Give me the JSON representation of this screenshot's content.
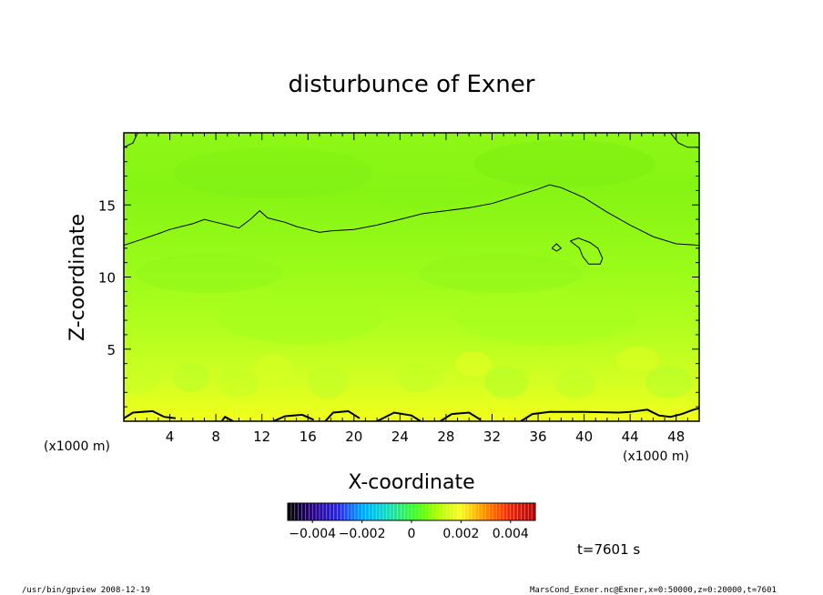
{
  "chart_data": {
    "type": "heatmap",
    "title": "disturbunce of Exner",
    "xlabel": "X-coordinate",
    "ylabel": "Z-coordinate",
    "x_unit": "(x1000 m)",
    "y_unit": "(x1000 m)",
    "xlim": [
      0,
      50
    ],
    "ylim": [
      0,
      20
    ],
    "x_ticks": [
      4,
      8,
      12,
      16,
      20,
      24,
      28,
      32,
      36,
      40,
      44,
      48
    ],
    "y_ticks": [
      5,
      10,
      15
    ],
    "colorbar": {
      "ticks": [
        -0.004,
        -0.002,
        0,
        0.002,
        0.004
      ],
      "tick_labels": [
        "−0.004",
        "−0.002",
        "0",
        "0.002",
        "0.004"
      ],
      "range": [
        -0.005,
        0.005
      ],
      "colormap": [
        "#000000",
        "#2a0088",
        "#2424ff",
        "#00a8ff",
        "#00e0c0",
        "#30ff30",
        "#a8ff00",
        "#ffff00",
        "#ff9000",
        "#ff2000",
        "#c00000"
      ]
    },
    "contour_levels": [
      0
    ],
    "field_description_rows": [
      {
        "z": 19,
        "value": 0.0006
      },
      {
        "z": 15,
        "value": 0.0005
      },
      {
        "z": 10,
        "value": 0.0008
      },
      {
        "z": 5,
        "value": 0.0012
      },
      {
        "z": 1,
        "value": 0.0018
      }
    ],
    "contours": [
      {
        "name": "upper-contour",
        "points": [
          [
            0,
            12.2
          ],
          [
            1.5,
            12.6
          ],
          [
            3,
            13.0
          ],
          [
            4,
            13.3
          ],
          [
            5,
            13.5
          ],
          [
            6,
            13.7
          ],
          [
            7,
            14.0
          ],
          [
            8,
            13.8
          ],
          [
            9,
            13.6
          ],
          [
            10,
            13.4
          ],
          [
            11,
            14.0
          ],
          [
            11.8,
            14.6
          ],
          [
            12.5,
            14.1
          ],
          [
            13,
            14.0
          ],
          [
            14,
            13.8
          ],
          [
            15,
            13.5
          ],
          [
            16,
            13.3
          ],
          [
            17,
            13.1
          ],
          [
            18,
            13.2
          ],
          [
            20,
            13.3
          ],
          [
            22,
            13.6
          ],
          [
            24,
            14.0
          ],
          [
            26,
            14.4
          ],
          [
            28,
            14.6
          ],
          [
            30,
            14.8
          ],
          [
            32,
            15.1
          ],
          [
            34,
            15.6
          ],
          [
            36,
            16.1
          ],
          [
            37,
            16.4
          ],
          [
            38,
            16.2
          ],
          [
            40,
            15.5
          ],
          [
            42,
            14.5
          ],
          [
            44,
            13.6
          ],
          [
            46,
            12.8
          ],
          [
            48,
            12.3
          ],
          [
            50,
            12.2
          ]
        ]
      },
      {
        "name": "island-contour-a",
        "points": [
          [
            37.2,
            12.0
          ],
          [
            37.6,
            12.3
          ],
          [
            38.0,
            12.0
          ],
          [
            37.6,
            11.8
          ],
          [
            37.2,
            12.0
          ]
        ]
      },
      {
        "name": "island-contour-b",
        "points": [
          [
            38.8,
            12.5
          ],
          [
            39.5,
            12.7
          ],
          [
            40.5,
            12.4
          ],
          [
            41.2,
            12.0
          ],
          [
            41.6,
            11.3
          ],
          [
            41.4,
            10.9
          ],
          [
            40.4,
            10.9
          ],
          [
            39.9,
            11.4
          ],
          [
            39.6,
            12.0
          ],
          [
            38.8,
            12.5
          ]
        ]
      },
      {
        "name": "top-left-corner-contour",
        "points": [
          [
            0,
            19.0
          ],
          [
            0.8,
            19.3
          ],
          [
            1.2,
            20
          ]
        ]
      },
      {
        "name": "top-right-corner-contour",
        "points": [
          [
            47.5,
            20
          ],
          [
            48.2,
            19.3
          ],
          [
            49,
            19.0
          ],
          [
            50,
            19.0
          ]
        ]
      },
      {
        "name": "bottom-contour-1",
        "points": [
          [
            0,
            0.2
          ],
          [
            0.8,
            0.6
          ],
          [
            2.5,
            0.7
          ],
          [
            3.5,
            0.3
          ],
          [
            4.5,
            0.2
          ]
        ]
      },
      {
        "name": "bottom-contour-2",
        "points": [
          [
            8.5,
            0
          ],
          [
            8.8,
            0.3
          ],
          [
            9.5,
            0
          ]
        ]
      },
      {
        "name": "bottom-contour-3",
        "points": [
          [
            13,
            0
          ],
          [
            14,
            0.35
          ],
          [
            15.5,
            0.45
          ],
          [
            16.5,
            0.1
          ]
        ]
      },
      {
        "name": "bottom-contour-4",
        "points": [
          [
            17.5,
            0
          ],
          [
            18.2,
            0.6
          ],
          [
            19.5,
            0.7
          ],
          [
            20.5,
            0.2
          ]
        ]
      },
      {
        "name": "bottom-contour-5",
        "points": [
          [
            22,
            0
          ],
          [
            23.5,
            0.6
          ],
          [
            25,
            0.4
          ],
          [
            25.8,
            0
          ]
        ]
      },
      {
        "name": "bottom-contour-6",
        "points": [
          [
            27.5,
            0
          ],
          [
            28.5,
            0.5
          ],
          [
            30,
            0.6
          ],
          [
            31,
            0.1
          ]
        ]
      },
      {
        "name": "bottom-contour-7",
        "points": [
          [
            34.5,
            0
          ],
          [
            35.5,
            0.5
          ],
          [
            37,
            0.65
          ],
          [
            40,
            0.65
          ],
          [
            43,
            0.6
          ],
          [
            44,
            0.65
          ],
          [
            45.5,
            0.8
          ],
          [
            46.5,
            0.4
          ],
          [
            47.5,
            0.3
          ],
          [
            48.5,
            0.5
          ],
          [
            49.5,
            0.8
          ],
          [
            50,
            0.9
          ]
        ]
      }
    ]
  },
  "footer": {
    "left": "/usr/bin/gpview   2008-12-19",
    "right": "MarsCond_Exner.nc@Exner,x=0:50000,z=0:20000,t=7601",
    "time": "t=7601 s"
  }
}
